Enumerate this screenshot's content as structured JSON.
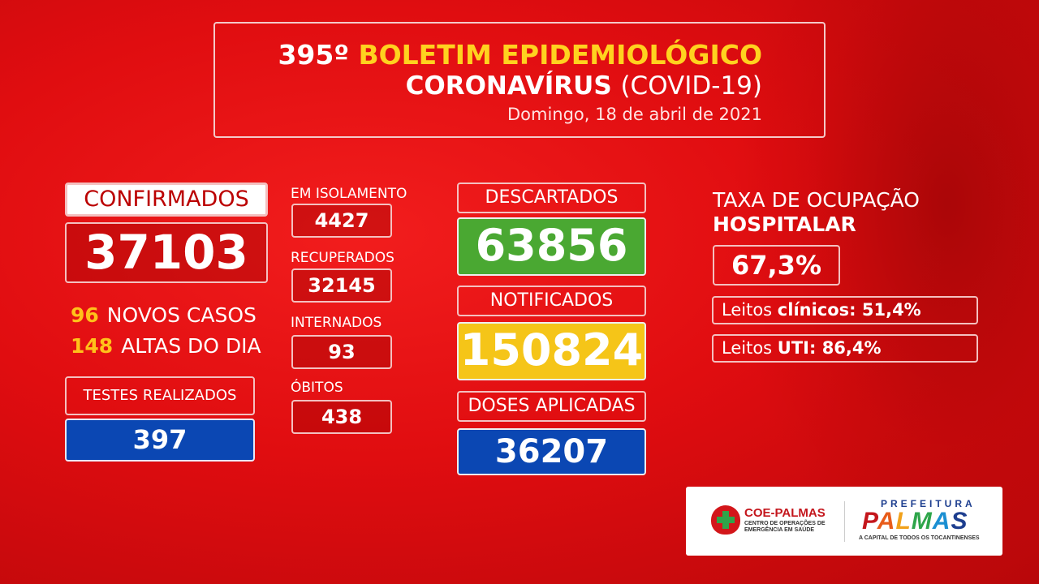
{
  "header": {
    "edition": "395º",
    "title": "BOLETIM EPIDEMIOLÓGICO",
    "subtitle_bold": "CORONAVÍRUS",
    "subtitle_paren": "(COVID-19)",
    "date": "Domingo, 18 de abril de 2021"
  },
  "confirmados": {
    "label": "CONFIRMADOS",
    "value": "37103",
    "novos_casos_num": "96",
    "novos_casos_label": "NOVOS CASOS",
    "altas_num": "148",
    "altas_label": "ALTAS DO DIA"
  },
  "testes": {
    "label": "TESTES REALIZADOS",
    "value": "397"
  },
  "middle": [
    {
      "label": "EM ISOLAMENTO",
      "value": "4427"
    },
    {
      "label": "RECUPERADOS",
      "value": "32145"
    },
    {
      "label": "INTERNADOS",
      "value": "93"
    },
    {
      "label": "ÓBITOS",
      "value": "438"
    }
  ],
  "descartados": {
    "label": "DESCARTADOS",
    "value": "63856"
  },
  "notificados": {
    "label": "NOTIFICADOS",
    "value": "150824"
  },
  "doses": {
    "label": "DOSES APLICADAS",
    "value": "36207"
  },
  "ocupacao": {
    "line1": "TAXA DE OCUPAÇÃO",
    "line2": "HOSPITALAR",
    "value": "67,3%",
    "clinicos_prefix": "Leitos",
    "clinicos_label": "clínicos: 51,4%",
    "uti_prefix": "Leitos",
    "uti_label": "UTI: 86,4%"
  },
  "logos": {
    "coe_name": "COE-PALMAS",
    "coe_sub": "CENTRO DE OPERAÇÕES DE EMERGÊNCIA EM SAÚDE",
    "prefeitura": "PREFEITURA",
    "palmas_letters": [
      "P",
      "A",
      "L",
      "M",
      "A",
      "S"
    ],
    "palmas_sub": "A CAPITAL DE TODOS OS TOCANTINENSES"
  },
  "colors": {
    "background": "#e00d10",
    "highlight_yellow": "#ffd21f",
    "green": "#4aa832",
    "yellow": "#f5c518",
    "blue": "#0b47b3"
  }
}
